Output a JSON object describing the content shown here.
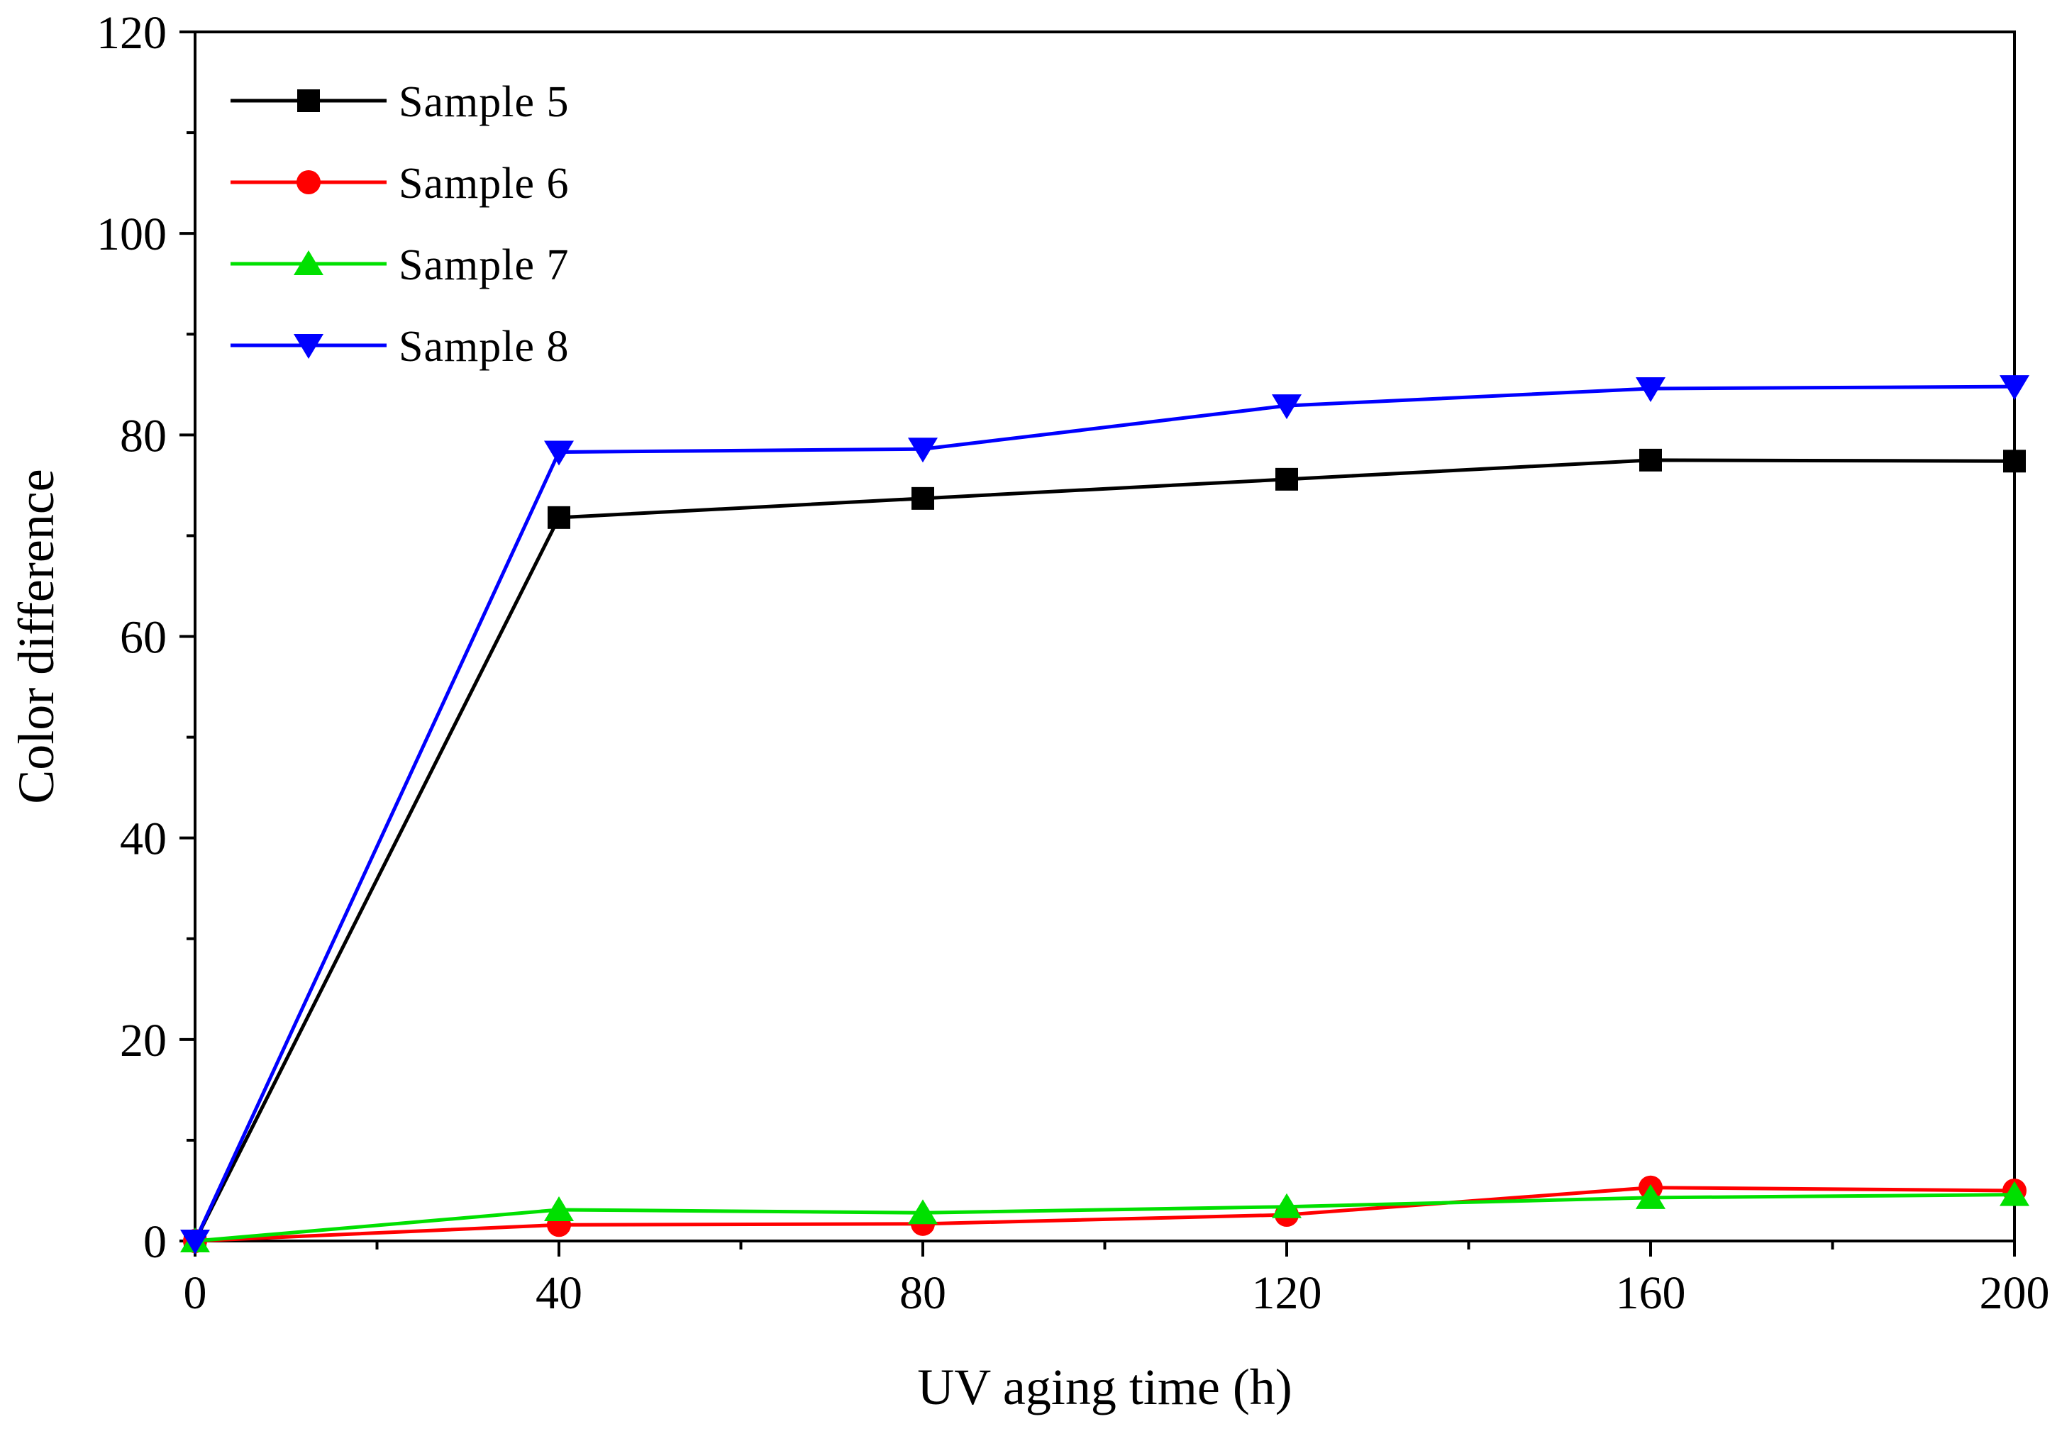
{
  "chart_data": {
    "type": "line",
    "title": "",
    "xlabel": "UV aging time (h)",
    "ylabel": "Color difference",
    "xlim": [
      0,
      200
    ],
    "ylim": [
      0,
      120
    ],
    "x_ticks": [
      0,
      40,
      80,
      120,
      160,
      200
    ],
    "y_ticks": [
      0,
      20,
      40,
      60,
      80,
      100,
      120
    ],
    "x": [
      0,
      40,
      80,
      120,
      160,
      200
    ],
    "grid": false,
    "legend_position": "top-left",
    "series": [
      {
        "name": "Sample 5",
        "color": "#000000",
        "marker": "square",
        "values": [
          0,
          71.8,
          73.7,
          75.6,
          77.5,
          77.4
        ]
      },
      {
        "name": "Sample 6",
        "color": "#ff0000",
        "marker": "circle",
        "values": [
          0,
          1.6,
          1.7,
          2.6,
          5.3,
          5.0
        ]
      },
      {
        "name": "Sample 7",
        "color": "#00e000",
        "marker": "triangle-up",
        "values": [
          0,
          3.1,
          2.8,
          3.4,
          4.3,
          4.6
        ]
      },
      {
        "name": "Sample 8",
        "color": "#0000ff",
        "marker": "triangle-down",
        "values": [
          0,
          78.3,
          78.6,
          82.9,
          84.6,
          84.8
        ]
      }
    ]
  }
}
